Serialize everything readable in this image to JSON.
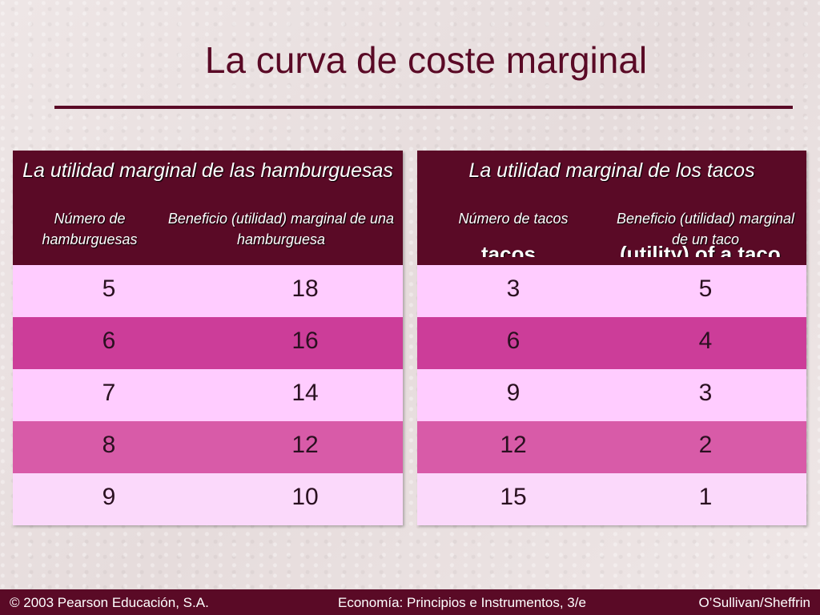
{
  "slide": {
    "title": "La curva de coste marginal"
  },
  "hamburgers": {
    "title": "La utilidad marginal de las hamburguesas",
    "col1": "Número de hamburguesas",
    "col2": "Beneficio (utilidad) marginal de una hamburguesa",
    "rows": [
      {
        "qty": "5",
        "benefit": "18"
      },
      {
        "qty": "6",
        "benefit": "16"
      },
      {
        "qty": "7",
        "benefit": "14"
      },
      {
        "qty": "8",
        "benefit": "12"
      },
      {
        "qty": "9",
        "benefit": "10"
      }
    ]
  },
  "tacos": {
    "title": "La utilidad marginal de los tacos",
    "col1": "Número de tacos",
    "col2": "Beneficio (utilidad) marginal de un taco",
    "ghost1": "tacos",
    "ghost2": "(utility) of a taco",
    "rows": [
      {
        "qty": "3",
        "benefit": "5"
      },
      {
        "qty": "6",
        "benefit": "4"
      },
      {
        "qty": "9",
        "benefit": "3"
      },
      {
        "qty": "12",
        "benefit": "2"
      },
      {
        "qty": "15",
        "benefit": "1"
      }
    ]
  },
  "footer": {
    "copyright": "© 2003 Pearson Educación, S.A.",
    "book": "Economía: Principios e Instrumentos, 3/e",
    "authors": "O’Sullivan/Sheffrin"
  }
}
